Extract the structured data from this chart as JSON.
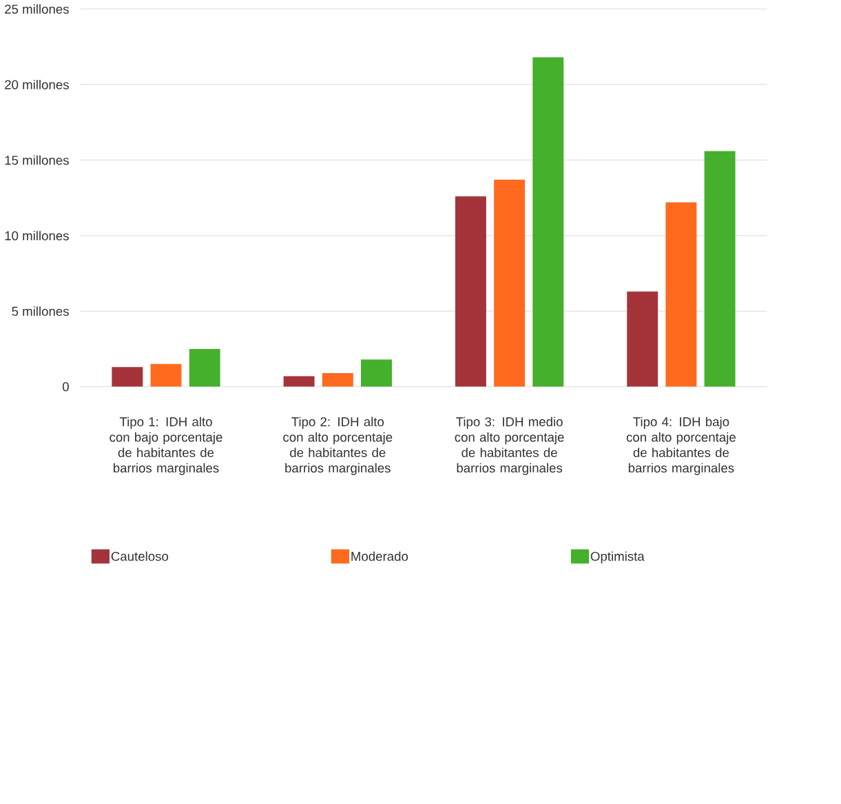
{
  "chart_data": {
    "type": "bar",
    "categories": [
      "Tipo 1: IDH alto con bajo porcentaje de habitantes de barrios marginales",
      "Tipo 2: IDH alto con alto porcentaje de habitantes de barrios marginales",
      "Tipo 3: IDH medio con alto porcentaje de habitantes de barrios marginales",
      "Tipo 4: IDH bajo con alto porcentaje de habitantes de barrios marginales"
    ],
    "series": [
      {
        "name": "Cauteloso",
        "color": "#a4343a",
        "values": [
          1.3,
          0.7,
          12.6,
          6.3
        ]
      },
      {
        "name": "Moderado",
        "color": "#ff6a1f",
        "values": [
          1.5,
          0.9,
          13.7,
          12.2
        ]
      },
      {
        "name": "Optimista",
        "color": "#44b02c",
        "values": [
          2.5,
          1.8,
          21.8,
          15.6
        ]
      }
    ],
    "ylim": [
      0,
      25
    ],
    "yticks": [
      0,
      {
        "value": 5,
        "label": "5 millones"
      },
      {
        "value": 10,
        "label": "10 millones"
      },
      {
        "value": 15,
        "label": "15 millones"
      },
      {
        "value": 20,
        "label": "20 millones"
      },
      {
        "value": 25,
        "label": "25 millones"
      }
    ],
    "grid": "y",
    "legend": "bottom"
  }
}
